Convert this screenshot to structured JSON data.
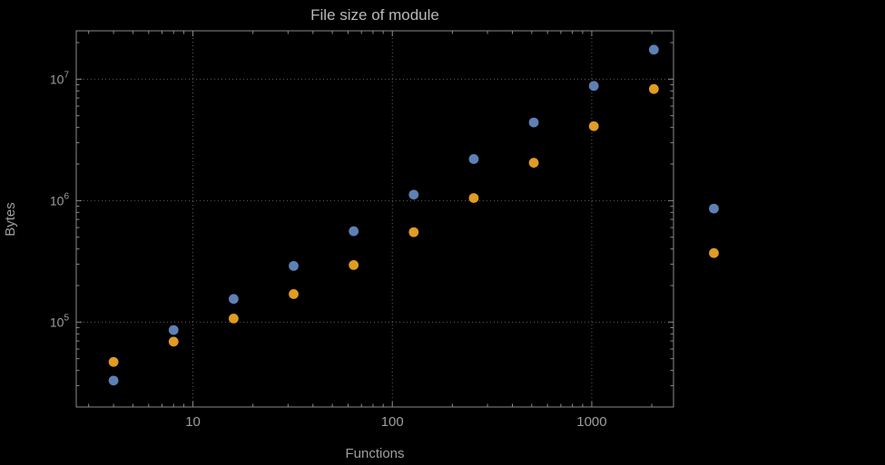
{
  "title": "File size of module",
  "chart_data": {
    "type": "scatter",
    "title": "File size of module",
    "xlabel": "Functions",
    "ylabel": "Bytes",
    "x_scale": "log",
    "y_scale": "log",
    "grid": "dotted-major",
    "legend_position": "none",
    "frame": true,
    "xlim": [
      2.6,
      2570
    ],
    "ylim": [
      20000,
      25000000
    ],
    "x": [
      4,
      8,
      16,
      32,
      64,
      128,
      256,
      512,
      1024,
      2048,
      4096
    ],
    "series": [
      {
        "name": "series-blue",
        "color": "#5e81b5",
        "values": [
          33000,
          86000,
          155000,
          290000,
          560000,
          1120000,
          2200000,
          4400000,
          8800000,
          17500000,
          860000
        ]
      },
      {
        "name": "series-orange",
        "color": "#e19c24",
        "values": [
          47000,
          69000,
          107000,
          170000,
          295000,
          550000,
          1050000,
          2050000,
          4100000,
          8300000,
          370000
        ]
      }
    ],
    "x_ticks": [
      {
        "value": 10,
        "label": "10"
      },
      {
        "value": 100,
        "label": "100"
      },
      {
        "value": 1000,
        "label": "1000"
      }
    ],
    "y_ticks": [
      {
        "value": 100000,
        "base": "10",
        "exp": "5"
      },
      {
        "value": 1000000,
        "base": "10",
        "exp": "6"
      },
      {
        "value": 10000000,
        "base": "10",
        "exp": "7"
      }
    ]
  },
  "colors": {
    "background": "#000000",
    "title_text": "#b8b8b8",
    "axis_label_text": "#9e9e9e",
    "tick_label_text": "#9e9e9e",
    "frame": "#8a8a8a",
    "grid": "#5c5c5c"
  }
}
